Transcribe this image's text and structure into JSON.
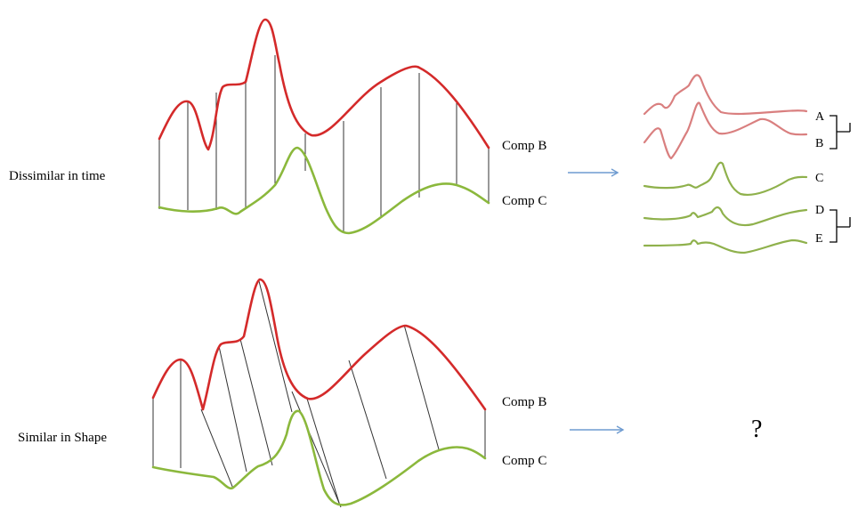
{
  "top_row": {
    "label": "Dissimilar in time",
    "series_b": "Comp B",
    "series_c": "Comp C"
  },
  "bottom_row": {
    "label": "Similar in Shape",
    "series_b": "Comp B",
    "series_c": "Comp C"
  },
  "cluster_labels": [
    "A",
    "B",
    "C",
    "D",
    "E"
  ],
  "unknown_result": "?",
  "colors": {
    "comp_b": "#d42a2a",
    "comp_c": "#8bb83c",
    "arrow": "#6e9bd0"
  }
}
